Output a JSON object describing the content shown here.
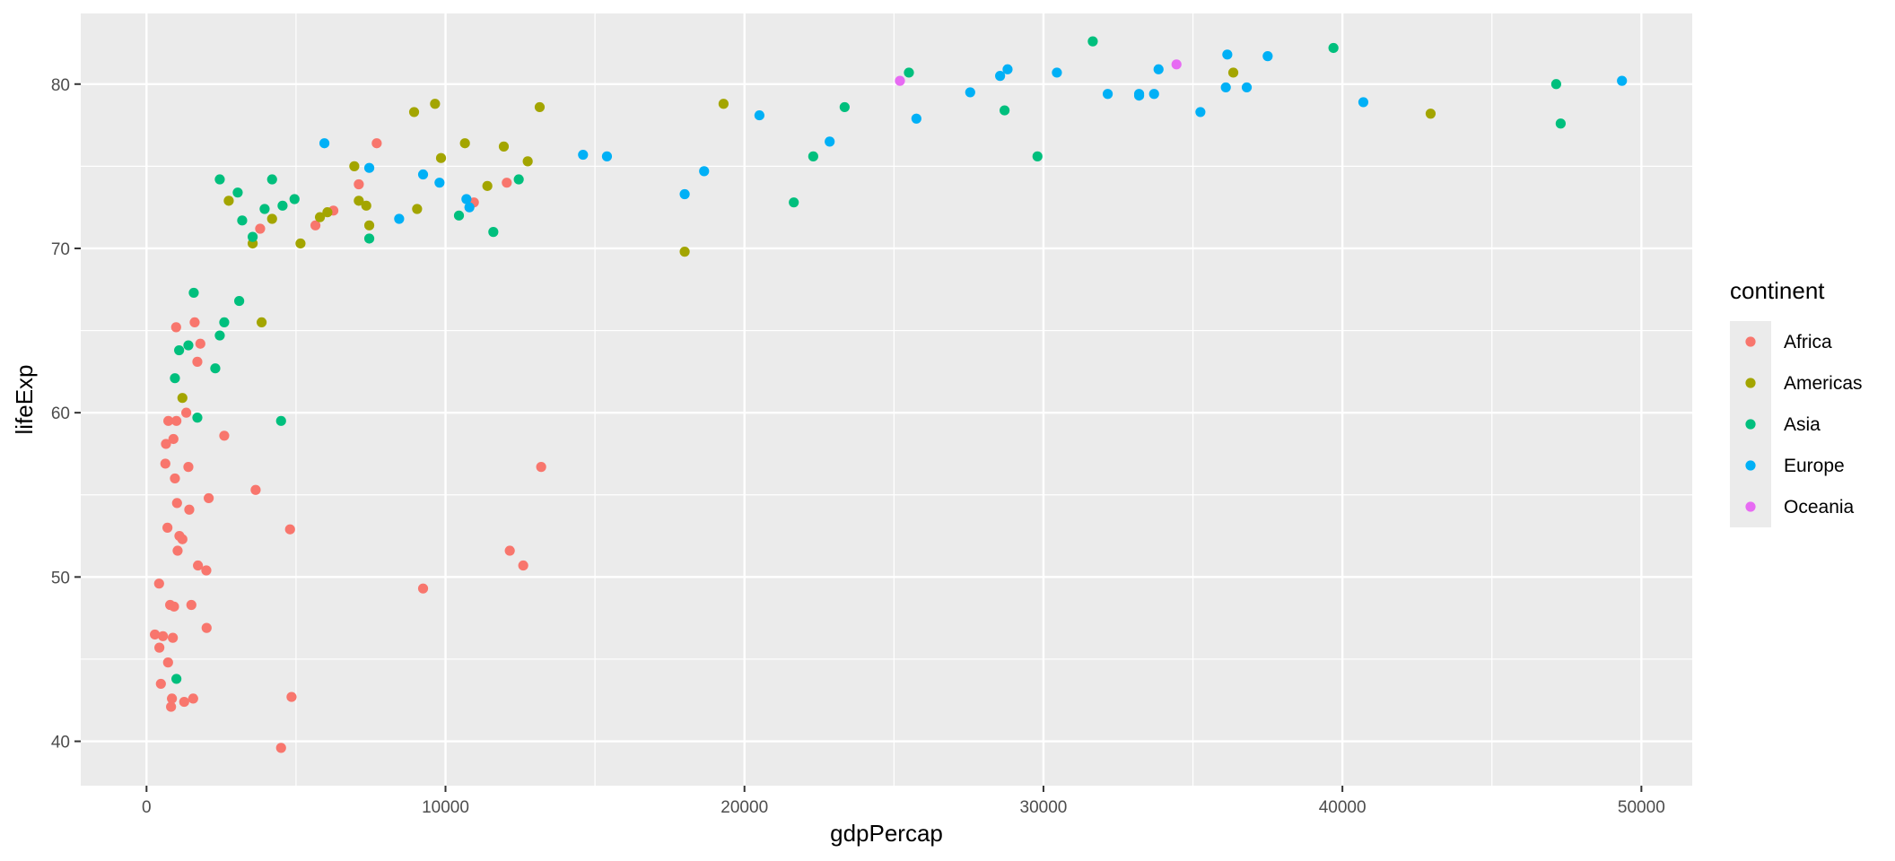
{
  "chart_data": {
    "type": "scatter",
    "xlabel": "gdpPercap",
    "ylabel": "lifeExp",
    "xlim": [
      -2200,
      51700
    ],
    "ylim": [
      37.3,
      84.3
    ],
    "x_major_ticks": [
      0,
      10000,
      20000,
      30000,
      40000,
      50000
    ],
    "x_minor_ticks": [
      5000,
      15000,
      25000,
      35000,
      45000
    ],
    "y_major_ticks": [
      40,
      50,
      60,
      70,
      80
    ],
    "y_minor_ticks": [
      45,
      55,
      65,
      75
    ],
    "x_tick_labels": [
      "0",
      "10000",
      "20000",
      "30000",
      "40000",
      "50000"
    ],
    "y_tick_labels": [
      "40",
      "50",
      "60",
      "70",
      "80"
    ],
    "grid": true,
    "panel_background": "#ebebeb",
    "legend": {
      "title": "continent",
      "placement": "right"
    },
    "series": [
      {
        "name": "Africa",
        "color": "#F8766D",
        "points": [
          [
            280,
            46.5
          ],
          [
            430,
            45.7
          ],
          [
            480,
            43.5
          ],
          [
            420,
            49.6
          ],
          [
            550,
            46.4
          ],
          [
            630,
            56.9
          ],
          [
            650,
            58.1
          ],
          [
            700,
            53.0
          ],
          [
            720,
            44.8
          ],
          [
            730,
            59.5
          ],
          [
            790,
            48.3
          ],
          [
            820,
            42.1
          ],
          [
            850,
            42.6
          ],
          [
            880,
            46.3
          ],
          [
            900,
            58.4
          ],
          [
            920,
            48.2
          ],
          [
            950,
            56.0
          ],
          [
            990,
            65.2
          ],
          [
            1000,
            59.5
          ],
          [
            1020,
            54.5
          ],
          [
            1040,
            51.6
          ],
          [
            1100,
            52.5
          ],
          [
            1200,
            52.3
          ],
          [
            1260,
            42.4
          ],
          [
            1330,
            60.0
          ],
          [
            1400,
            56.7
          ],
          [
            1430,
            54.1
          ],
          [
            1500,
            48.3
          ],
          [
            1560,
            42.6
          ],
          [
            1610,
            65.5
          ],
          [
            1700,
            63.1
          ],
          [
            1720,
            50.7
          ],
          [
            1800,
            64.2
          ],
          [
            2000,
            50.4
          ],
          [
            2010,
            46.9
          ],
          [
            2080,
            54.8
          ],
          [
            2600,
            58.6
          ],
          [
            3650,
            55.3
          ],
          [
            3800,
            71.2
          ],
          [
            4500,
            39.6
          ],
          [
            4800,
            52.9
          ],
          [
            4850,
            42.7
          ],
          [
            5650,
            71.4
          ],
          [
            6250,
            72.3
          ],
          [
            7100,
            73.9
          ],
          [
            7700,
            76.4
          ],
          [
            9250,
            49.3
          ],
          [
            10950,
            72.8
          ],
          [
            12050,
            74.0
          ],
          [
            12150,
            51.6
          ],
          [
            12600,
            50.7
          ],
          [
            13200,
            56.7
          ]
        ]
      },
      {
        "name": "Americas",
        "color": "#A3A500",
        "points": [
          [
            1200,
            60.9
          ],
          [
            2750,
            72.9
          ],
          [
            3550,
            70.3
          ],
          [
            3850,
            65.5
          ],
          [
            4200,
            71.8
          ],
          [
            5150,
            70.3
          ],
          [
            5800,
            71.9
          ],
          [
            6050,
            72.2
          ],
          [
            6950,
            75.0
          ],
          [
            7100,
            72.9
          ],
          [
            7350,
            72.6
          ],
          [
            7450,
            71.4
          ],
          [
            8950,
            78.3
          ],
          [
            9050,
            72.4
          ],
          [
            9650,
            78.8
          ],
          [
            9850,
            75.5
          ],
          [
            10650,
            76.4
          ],
          [
            11400,
            73.8
          ],
          [
            11950,
            76.2
          ],
          [
            12750,
            75.3
          ],
          [
            13150,
            78.6
          ],
          [
            18000,
            69.8
          ],
          [
            19300,
            78.8
          ],
          [
            36350,
            80.7
          ],
          [
            42950,
            78.2
          ]
        ]
      },
      {
        "name": "Asia",
        "color": "#00BF7D",
        "points": [
          [
            950,
            62.1
          ],
          [
            1000,
            43.8
          ],
          [
            1090,
            63.8
          ],
          [
            1400,
            64.1
          ],
          [
            1580,
            67.3
          ],
          [
            1700,
            59.7
          ],
          [
            2300,
            62.7
          ],
          [
            2450,
            74.2
          ],
          [
            2450,
            64.7
          ],
          [
            2600,
            65.5
          ],
          [
            3050,
            73.4
          ],
          [
            3100,
            66.8
          ],
          [
            3200,
            71.7
          ],
          [
            3550,
            70.7
          ],
          [
            3950,
            72.4
          ],
          [
            4200,
            74.2
          ],
          [
            4500,
            59.5
          ],
          [
            4550,
            72.6
          ],
          [
            4950,
            73.0
          ],
          [
            7450,
            70.6
          ],
          [
            10450,
            72.0
          ],
          [
            11600,
            71.0
          ],
          [
            12450,
            74.2
          ],
          [
            21650,
            72.8
          ],
          [
            22300,
            75.6
          ],
          [
            23350,
            78.6
          ],
          [
            25500,
            80.7
          ],
          [
            28700,
            78.4
          ],
          [
            29800,
            75.6
          ],
          [
            31650,
            82.6
          ],
          [
            39700,
            82.2
          ],
          [
            47150,
            80.0
          ],
          [
            47300,
            77.6
          ]
        ]
      },
      {
        "name": "Europe",
        "color": "#00B0F6",
        "points": [
          [
            5950,
            76.4
          ],
          [
            7450,
            74.9
          ],
          [
            8450,
            71.8
          ],
          [
            9250,
            74.5
          ],
          [
            9800,
            74.0
          ],
          [
            10700,
            73.0
          ],
          [
            10800,
            72.5
          ],
          [
            14600,
            75.7
          ],
          [
            15400,
            75.6
          ],
          [
            18000,
            73.3
          ],
          [
            18650,
            74.7
          ],
          [
            20500,
            78.1
          ],
          [
            22850,
            76.5
          ],
          [
            25750,
            77.9
          ],
          [
            27550,
            79.5
          ],
          [
            28550,
            80.5
          ],
          [
            28800,
            80.9
          ],
          [
            30450,
            80.7
          ],
          [
            32150,
            79.4
          ],
          [
            33200,
            79.3
          ],
          [
            33200,
            79.4
          ],
          [
            33700,
            79.4
          ],
          [
            33850,
            80.9
          ],
          [
            35250,
            78.3
          ],
          [
            36100,
            79.8
          ],
          [
            36150,
            81.8
          ],
          [
            36800,
            79.8
          ],
          [
            37500,
            81.7
          ],
          [
            40700,
            78.9
          ],
          [
            49350,
            80.2
          ]
        ]
      },
      {
        "name": "Oceania",
        "color": "#E76BF3",
        "points": [
          [
            25200,
            80.2
          ],
          [
            34450,
            81.2
          ]
        ]
      }
    ]
  }
}
